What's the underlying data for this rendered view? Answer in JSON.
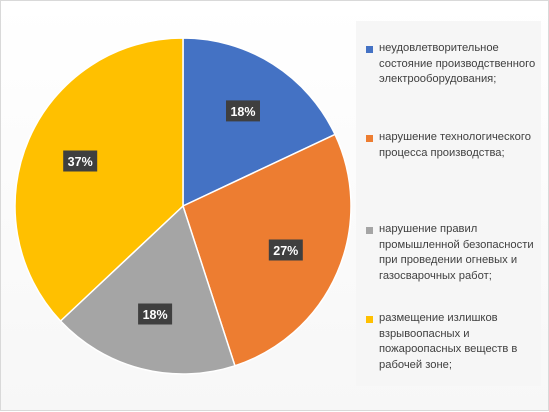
{
  "chart_data": {
    "type": "pie",
    "categories": [
      "неудовлетворительное состояние производственного электрооборудования;",
      "нарушение технологического процесса производства;",
      "нарушение правил промышленной безопасности при проведении огневых и газосварочных работ;",
      "размещение излишков взрывоопасных и пожароопасных веществ в рабочей зоне;"
    ],
    "values": [
      18,
      27,
      18,
      37
    ],
    "labels": [
      "18%",
      "27%",
      "18%",
      "37%"
    ],
    "colors": [
      "#4472c4",
      "#ed7d31",
      "#a5a5a5",
      "#ffc000"
    ],
    "legend_position": "right",
    "start_angle": "12 o'clock",
    "direction": "clockwise"
  }
}
